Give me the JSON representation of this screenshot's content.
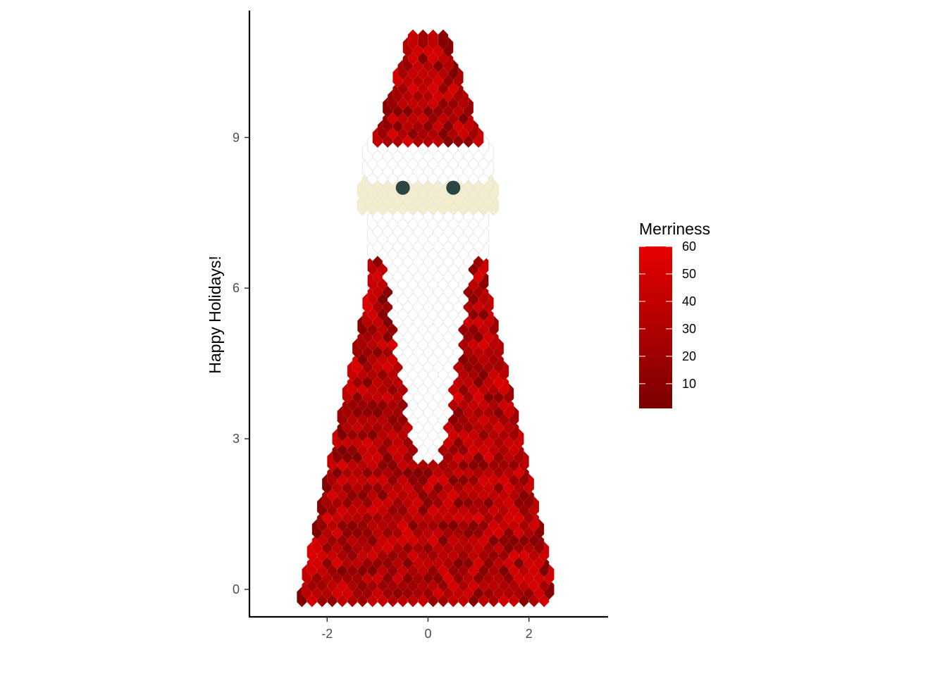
{
  "chart_data": {
    "type": "hexbin",
    "title": "",
    "xlabel": "",
    "ylabel": "Happy Holidays!",
    "xlim": [
      -3.55,
      3.55
    ],
    "ylim": [
      -0.55,
      11.4
    ],
    "x_ticks": [
      -2,
      0,
      2
    ],
    "x_tick_labels": [
      "-2",
      "0",
      "2"
    ],
    "y_ticks": [
      0,
      3,
      6,
      9
    ],
    "y_tick_labels": [
      "0",
      "3",
      "6",
      "9"
    ],
    "grid": false,
    "legend": {
      "title": "Merriness",
      "placement": "right",
      "range": [
        1,
        60
      ],
      "breaks": [
        10,
        20,
        30,
        40,
        50,
        60
      ],
      "break_labels": [
        "10",
        "20",
        "30",
        "40",
        "50",
        "60"
      ],
      "color_low": "#7a0000",
      "color_high": "#e60000"
    },
    "regions": {
      "hat": {
        "fill": "red gradient",
        "y_range": [
          9.0,
          11.1
        ],
        "x_half_width_bottom": 1.05,
        "x_half_width_top": 0.35
      },
      "hat_brim": {
        "fill": "#ffffff",
        "y_range": [
          8.25,
          9.0
        ]
      },
      "face": {
        "fill": "#f2ecd1",
        "y_range": [
          7.6,
          8.3
        ]
      },
      "beard": {
        "fill": "#ffffff",
        "y_range": [
          2.55,
          7.6
        ]
      },
      "body": {
        "fill": "red gradient",
        "y_range": [
          -0.15,
          6.7
        ],
        "x_half_width_bottom": 2.5,
        "x_half_width_top": 1.05
      }
    },
    "eyes": [
      {
        "x": -0.5,
        "y": 8.0,
        "color": "#2a4544"
      },
      {
        "x": 0.5,
        "y": 8.0,
        "color": "#2a4544"
      }
    ],
    "bin_width": {
      "x": 0.1,
      "y": 0.3
    }
  }
}
